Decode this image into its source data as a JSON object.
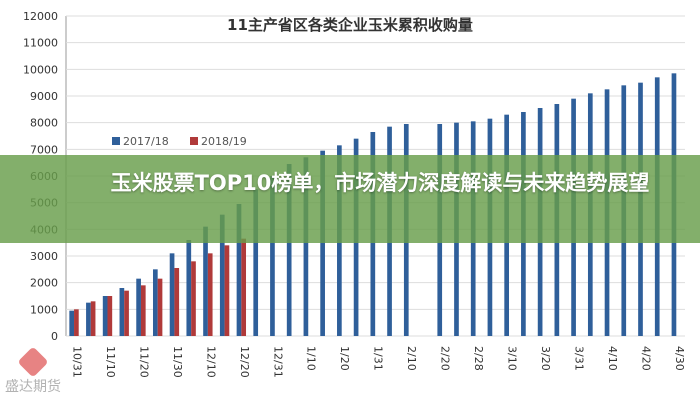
{
  "chart_data": {
    "type": "bar",
    "title": "11主产省区各类企业玉米累积收购量",
    "ylim": [
      0,
      12000
    ],
    "yticks": [
      0,
      1000,
      2000,
      3000,
      4000,
      5000,
      6000,
      7000,
      8000,
      9000,
      10000,
      11000,
      12000
    ],
    "xlabels": [
      "10/31",
      "",
      "11/10",
      "",
      "11/20",
      "",
      "11/30",
      "",
      "12/10",
      "",
      "12/20",
      "",
      "12/31",
      "",
      "1/10",
      "",
      "1/20",
      "",
      "1/31",
      "",
      "2/10",
      "",
      "2/20",
      "",
      "2/28",
      "",
      "3/10",
      "",
      "3/20",
      "",
      "3/31",
      "",
      "4/10",
      "",
      "4/20",
      "",
      "4/30"
    ],
    "legend_position": "top-left",
    "series": [
      {
        "name": "2017/18",
        "color": "#2f5f9a",
        "values": [
          950,
          1250,
          1500,
          1800,
          2150,
          2500,
          3100,
          3600,
          4100,
          4550,
          4950,
          5500,
          6000,
          6450,
          6700,
          6950,
          7150,
          7400,
          7650,
          7850,
          7950,
          null,
          7950,
          8000,
          8050,
          8150,
          8300,
          8400,
          8550,
          8700,
          8900,
          9100,
          9250,
          9400,
          9500,
          9700,
          9850
        ]
      },
      {
        "name": "2018/19",
        "color": "#b03a3a",
        "values": [
          1000,
          1300,
          1500,
          1700,
          1900,
          2150,
          2550,
          2800,
          3100,
          3400,
          3650
        ]
      }
    ]
  },
  "overlay": {
    "headline": "玉米股票TOP10榜单，市场潜力深度解读与未来趋势展望"
  },
  "watermark": {
    "text": "盛达期货"
  }
}
